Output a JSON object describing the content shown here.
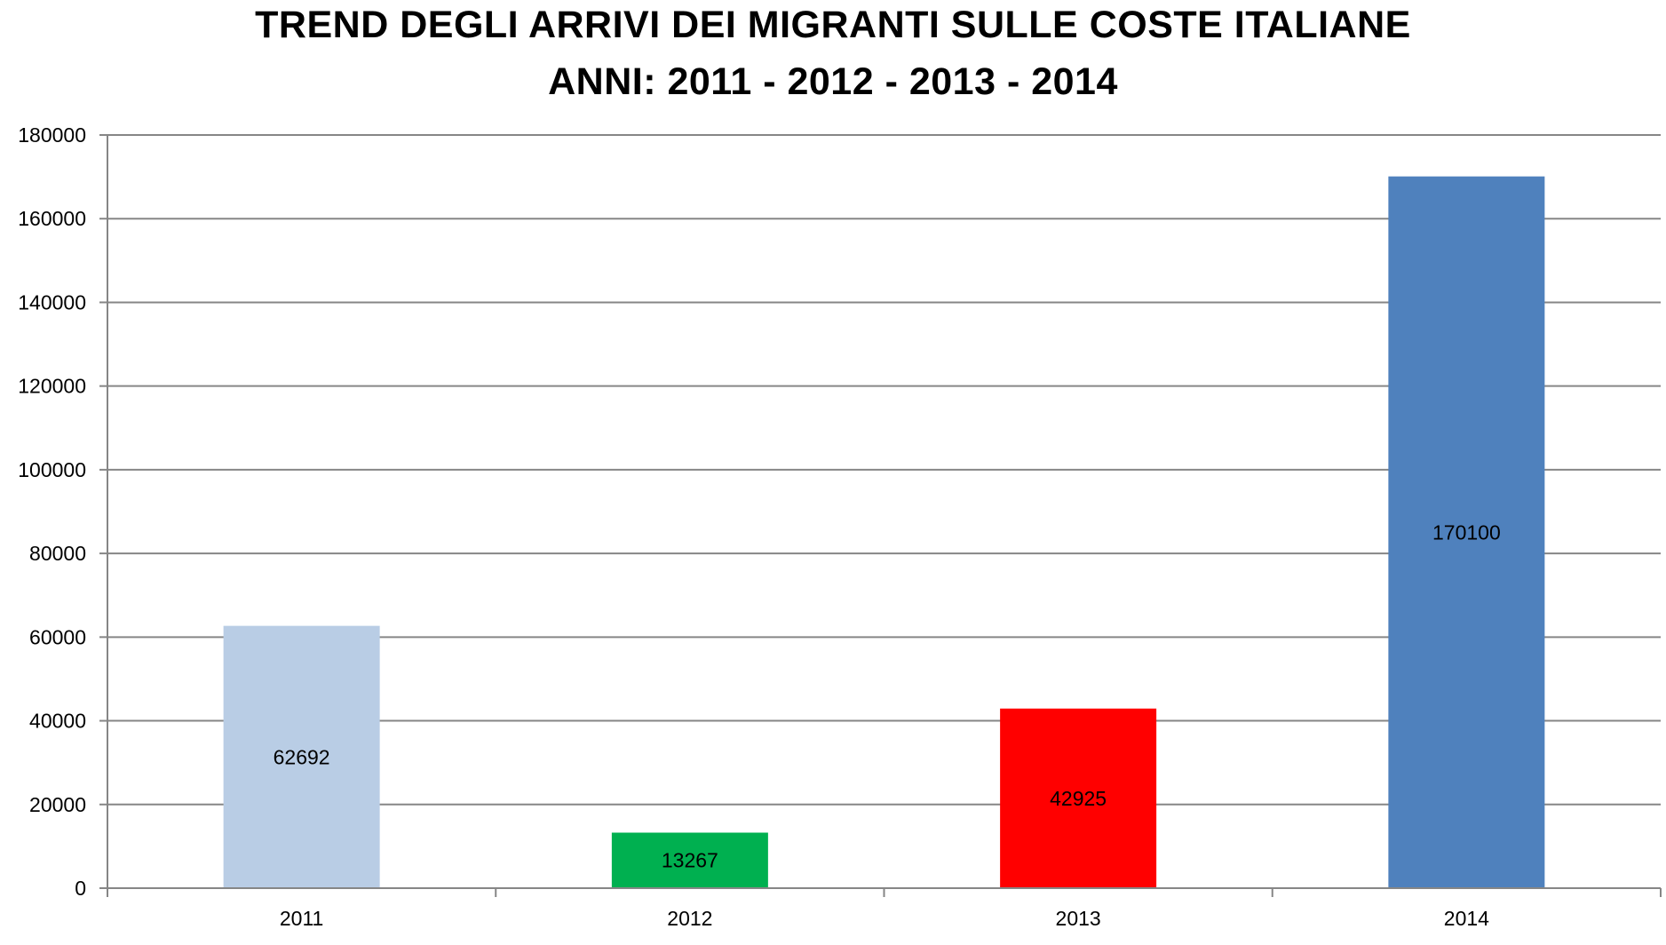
{
  "chart_data": {
    "type": "bar",
    "title": "TREND DEGLI ARRIVI DEI MIGRANTI SULLE COSTE ITALIANE",
    "subtitle": "ANNI: 2011 - 2012 - 2013 - 2014",
    "categories": [
      "2011",
      "2012",
      "2013",
      "2014"
    ],
    "values": [
      62692,
      13267,
      42925,
      170100
    ],
    "data_labels": [
      "62692",
      "13267",
      "42925",
      "170100"
    ],
    "bar_colors": [
      "#b9cde5",
      "#00b050",
      "#ff0000",
      "#4f81bd"
    ],
    "ylim": [
      0,
      180000
    ],
    "yticks": [
      0,
      20000,
      40000,
      60000,
      80000,
      100000,
      120000,
      140000,
      160000,
      180000
    ],
    "ytick_labels": [
      "0",
      "20000",
      "40000",
      "60000",
      "80000",
      "100000",
      "120000",
      "140000",
      "160000",
      "180000"
    ],
    "grid": true,
    "legend": "none"
  }
}
